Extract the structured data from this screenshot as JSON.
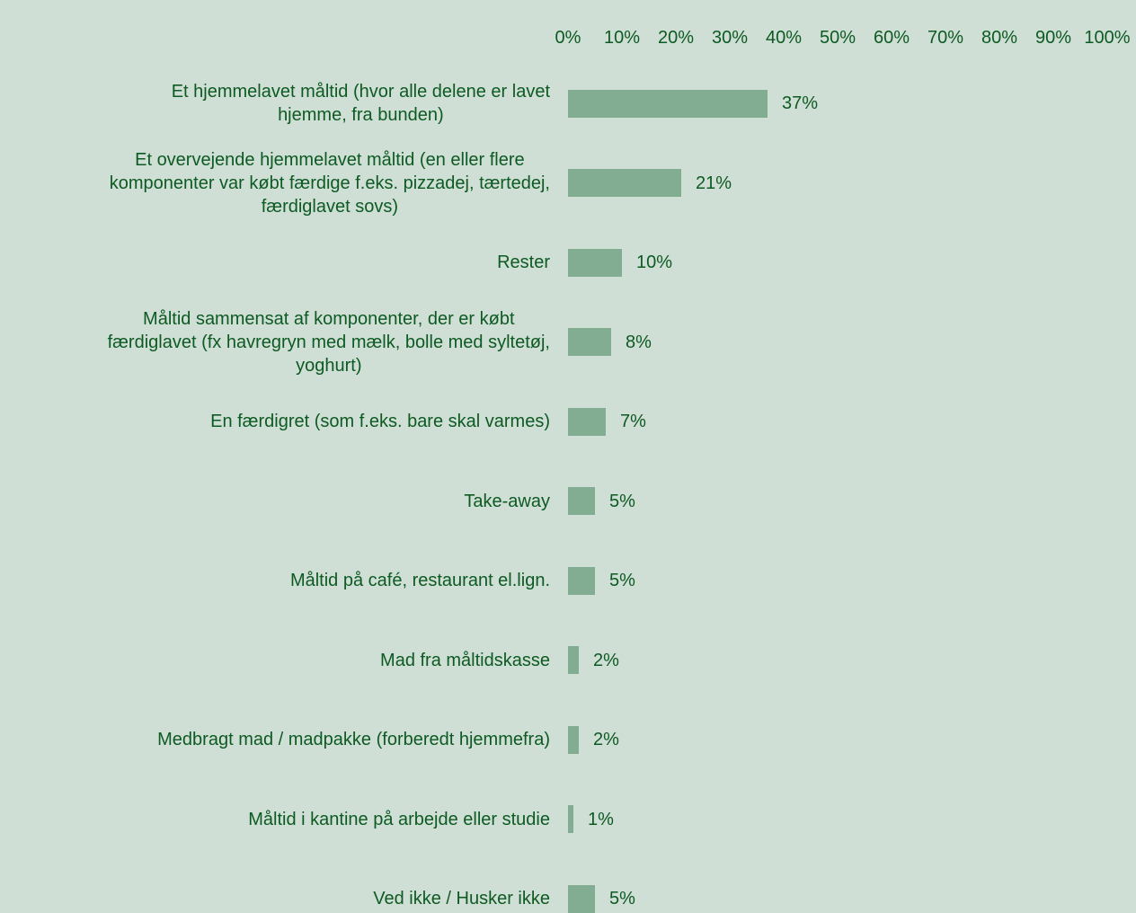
{
  "chart_data": {
    "type": "bar",
    "orientation": "horizontal",
    "categories": [
      "Et hjemmelavet måltid (hvor alle delene er lavet\nhjemme, fra bunden)",
      "Et overvejende hjemmelavet måltid (en eller flere\nkomponenter var købt færdige f.eks. pizzadej, tærtedej,\nfærdiglavet sovs)",
      "Rester",
      "Måltid sammensat af komponenter, der er købt\nfærdiglavet (fx havregryn med mælk, bolle med syltetøj,\nyoghurt)",
      "En færdigret (som f.eks. bare skal varmes)",
      "Take-away",
      "Måltid på café, restaurant el.lign.",
      "Mad fra måltidskasse",
      "Medbragt mad / madpakke (forberedt hjemmefra)",
      "Måltid i kantine på arbejde eller studie",
      "Ved ikke / Husker ikke"
    ],
    "values": [
      37,
      21,
      10,
      8,
      7,
      5,
      5,
      2,
      2,
      1,
      5
    ],
    "value_labels": [
      "37%",
      "21%",
      "10%",
      "8%",
      "7%",
      "5%",
      "5%",
      "2%",
      "2%",
      "1%",
      "5%"
    ],
    "color": "#82ad92",
    "xlim": [
      0,
      100
    ],
    "xticks": [
      {
        "value": 0,
        "label": "0%"
      },
      {
        "value": 10,
        "label": "10%"
      },
      {
        "value": 20,
        "label": "20%"
      },
      {
        "value": 30,
        "label": "30%"
      },
      {
        "value": 40,
        "label": "40%"
      },
      {
        "value": 50,
        "label": "50%"
      },
      {
        "value": 60,
        "label": "60%"
      },
      {
        "value": 70,
        "label": "70%"
      },
      {
        "value": 80,
        "label": "80%"
      },
      {
        "value": 90,
        "label": "90%"
      },
      {
        "value": 100,
        "label": "100%"
      }
    ]
  }
}
